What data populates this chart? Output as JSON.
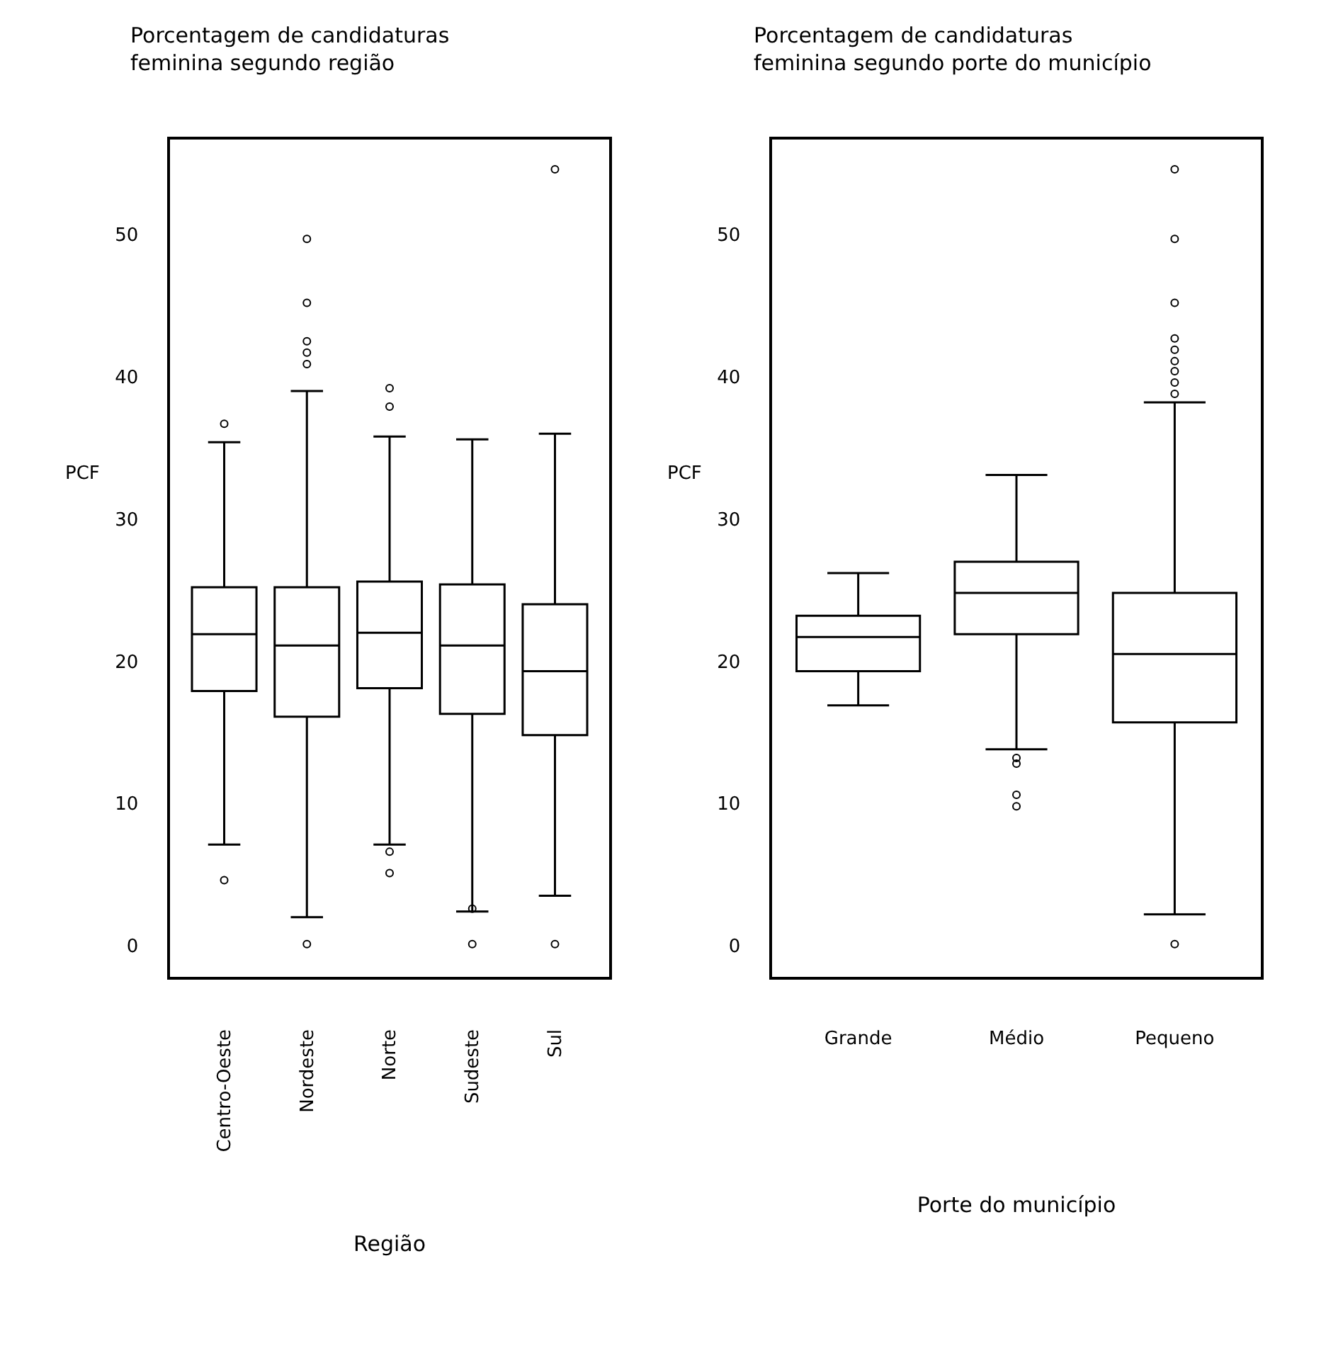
{
  "chart_data": [
    {
      "type": "box",
      "title": "Porcentagem de candidaturas\nfeminina segundo região",
      "xlabel": "Região",
      "ylabel": "PCF",
      "categories": [
        "Centro-Oeste",
        "Nordeste",
        "Norte",
        "Sudeste",
        "Sul"
      ],
      "boxes": [
        {
          "low": 7.1,
          "q1": 17.9,
          "median": 21.9,
          "q3": 25.2,
          "high": 35.4,
          "outliers": [
            36.7,
            4.6
          ]
        },
        {
          "low": 2.0,
          "q1": 16.1,
          "median": 21.1,
          "q3": 25.2,
          "high": 39.0,
          "outliers": [
            49.7,
            45.2,
            42.5,
            41.7,
            40.9,
            0.1
          ]
        },
        {
          "low": 7.1,
          "q1": 18.1,
          "median": 22.0,
          "q3": 25.6,
          "high": 35.8,
          "outliers": [
            39.2,
            37.9,
            6.6,
            5.1
          ]
        },
        {
          "low": 2.4,
          "q1": 16.3,
          "median": 21.1,
          "q3": 25.4,
          "high": 35.6,
          "outliers": [
            2.6,
            0.1
          ]
        },
        {
          "low": 3.5,
          "q1": 14.8,
          "median": 19.3,
          "q3": 24.0,
          "high": 36.0,
          "outliers": [
            54.6,
            0.1
          ]
        }
      ],
      "ylim": [
        -2.2,
        56.7
      ],
      "yticks": [
        0,
        10,
        20,
        30,
        40,
        50
      ]
    },
    {
      "type": "box",
      "title": "Porcentagem de candidaturas\nfeminina segundo porte do município",
      "xlabel": "Porte do município",
      "ylabel": "PCF",
      "categories": [
        "Grande",
        "Médio",
        "Pequeno"
      ],
      "boxes": [
        {
          "low": 16.9,
          "q1": 19.3,
          "median": 21.7,
          "q3": 23.2,
          "high": 26.2
        },
        {
          "low": 13.8,
          "q1": 21.9,
          "median": 24.8,
          "q3": 27.0,
          "high": 33.1,
          "outliers": [
            13.2,
            12.8,
            10.6,
            9.8
          ]
        },
        {
          "low": 2.2,
          "q1": 15.7,
          "median": 20.5,
          "q3": 24.8,
          "high": 38.2,
          "outliers": [
            54.6,
            49.7,
            45.2,
            42.7,
            41.9,
            41.1,
            40.4,
            39.6,
            38.8,
            0.1
          ]
        }
      ],
      "ylim": [
        -2.2,
        56.7
      ],
      "yticks": [
        0,
        10,
        20,
        30,
        40,
        50
      ]
    }
  ]
}
